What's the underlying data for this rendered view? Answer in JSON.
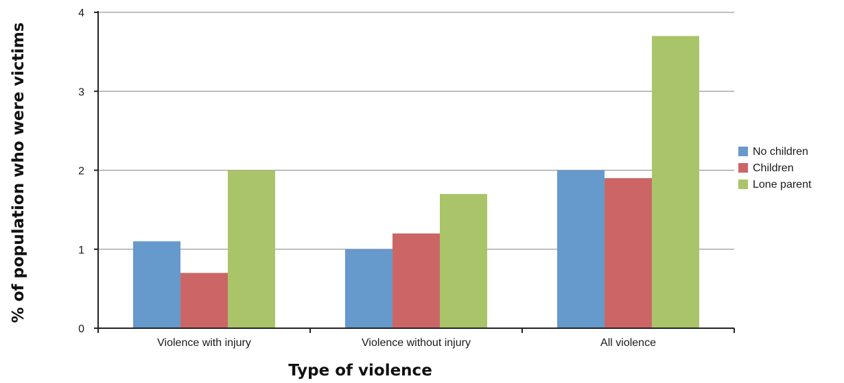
{
  "chart_data": {
    "type": "bar",
    "title": "",
    "xlabel": "Type of violence",
    "ylabel": "% of population who were victims",
    "categories": [
      "Violence with injury",
      "Violence without injury",
      "All violence"
    ],
    "series": [
      {
        "name": "No children",
        "values": [
          1.1,
          1.0,
          2.0
        ],
        "color": "#6699cc"
      },
      {
        "name": "Children",
        "values": [
          0.7,
          1.2,
          1.9
        ],
        "color": "#cc6666"
      },
      {
        "name": "Lone parent",
        "values": [
          2.0,
          1.7,
          3.7
        ],
        "color": "#aac46a"
      }
    ],
    "ylim": [
      0,
      4
    ],
    "yticks": [
      "0",
      "1",
      "2",
      "3",
      "4"
    ],
    "grid": true,
    "legend_position": "right"
  }
}
